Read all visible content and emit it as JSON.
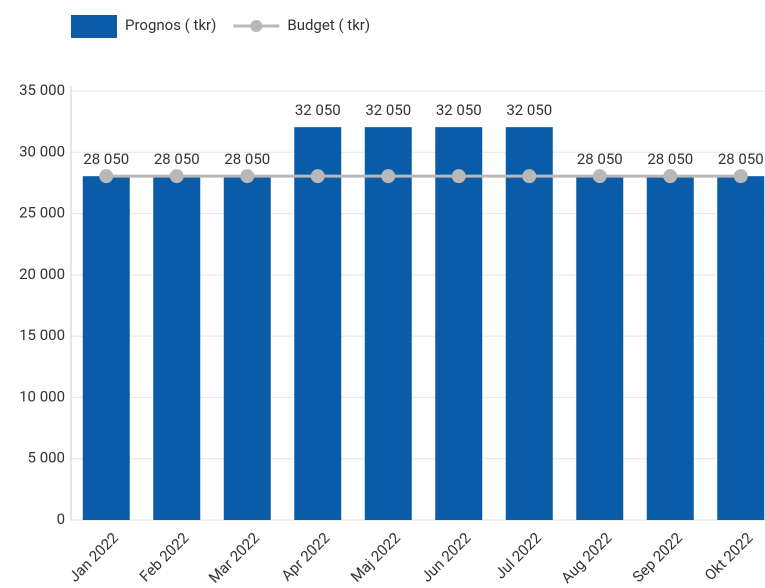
{
  "chart_data": {
    "type": "bar",
    "categories": [
      "Jan 2022",
      "Feb 2022",
      "Mar 2022",
      "Apr 2022",
      "Maj 2022",
      "Jun 2022",
      "Jul 2022",
      "Aug 2022",
      "Sep 2022",
      "Okt 2022"
    ],
    "series": [
      {
        "name": "Prognos ( tkr)",
        "color": "#0a5ba8",
        "values": [
          28050,
          28050,
          28050,
          32050,
          32050,
          32050,
          32050,
          28050,
          28050,
          28050
        ],
        "value_labels": [
          "28 050",
          "28 050",
          "28 050",
          "32 050",
          "32 050",
          "32 050",
          "32 050",
          "28 050",
          "28 050",
          "28 050"
        ]
      },
      {
        "name": "Budget ( tkr)",
        "color": "#b8b8b8",
        "type": "line",
        "values": [
          28050,
          28050,
          28050,
          28050,
          28050,
          28050,
          28050,
          28050,
          28050,
          28050
        ]
      }
    ],
    "ylim": [
      0,
      35000
    ],
    "yticks": [
      0,
      {
        "value": 5000,
        "label": "5 000"
      },
      {
        "value": 10000,
        "label": "10 000"
      },
      {
        "value": 15000,
        "label": "15 000"
      },
      {
        "value": 20000,
        "label": "20 000"
      },
      {
        "value": 25000,
        "label": "25 000"
      },
      {
        "value": 30000,
        "label": "30 000"
      },
      {
        "value": 35000,
        "label": "35 000"
      }
    ],
    "grid": true,
    "legend": "top"
  }
}
